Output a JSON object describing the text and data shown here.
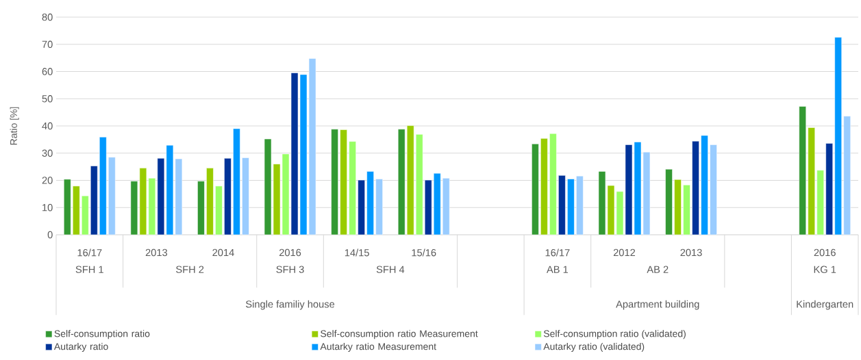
{
  "chart_data": {
    "type": "bar",
    "ylabel": "Ratio [%]",
    "categories": [
      "16/17",
      "2013",
      "2014",
      "2016",
      "14/15",
      "15/16",
      null,
      "16/17",
      "2012",
      "2013",
      null,
      "2016"
    ],
    "series": [
      {
        "name": "Self-consumption ratio",
        "color": "#339933",
        "values": [
          20.4,
          19.7,
          19.7,
          35.2,
          38.8,
          38.8,
          null,
          33.4,
          23.3,
          24.1,
          null,
          47.2
        ]
      },
      {
        "name": "Self-consumption ratio Measurement",
        "color": "#99cc00",
        "values": [
          17.9,
          24.5,
          24.5,
          26.0,
          38.6,
          40.1,
          null,
          35.4,
          18.1,
          20.3,
          null,
          39.4
        ]
      },
      {
        "name": "Self-consumption ratio (validated)",
        "color": "#99ff66",
        "values": [
          14.3,
          20.8,
          17.9,
          29.7,
          34.3,
          36.9,
          null,
          37.2,
          15.9,
          18.3,
          null,
          23.7
        ]
      },
      {
        "name": "Autarky ratio",
        "color": "#003399",
        "values": [
          25.3,
          28.1,
          28.1,
          59.5,
          20.1,
          20.1,
          null,
          21.8,
          33.1,
          34.4,
          null,
          33.6
        ]
      },
      {
        "name": "Autarky ratio Measurement",
        "color": "#0099ff",
        "values": [
          35.9,
          32.9,
          39.0,
          58.9,
          23.3,
          22.6,
          null,
          20.5,
          34.1,
          36.5,
          null,
          72.6
        ]
      },
      {
        "name": "Autarky ratio (validated)",
        "color": "#99ccff",
        "values": [
          28.5,
          27.9,
          28.3,
          64.8,
          20.5,
          20.8,
          null,
          21.6,
          30.4,
          33.1,
          null,
          43.6
        ]
      }
    ],
    "ylim": [
      0,
      80
    ],
    "yticks": [
      0,
      10,
      20,
      30,
      40,
      50,
      60,
      70,
      80
    ],
    "grid": "y",
    "legend": "bottom",
    "annotations": [
      "SFH 1",
      "SFH 2",
      "SFH 3",
      "SFH 4",
      "AB 1",
      "AB 2",
      "KG 1",
      "Single familiy house",
      "Apartment building",
      "Kindergarten"
    ]
  }
}
